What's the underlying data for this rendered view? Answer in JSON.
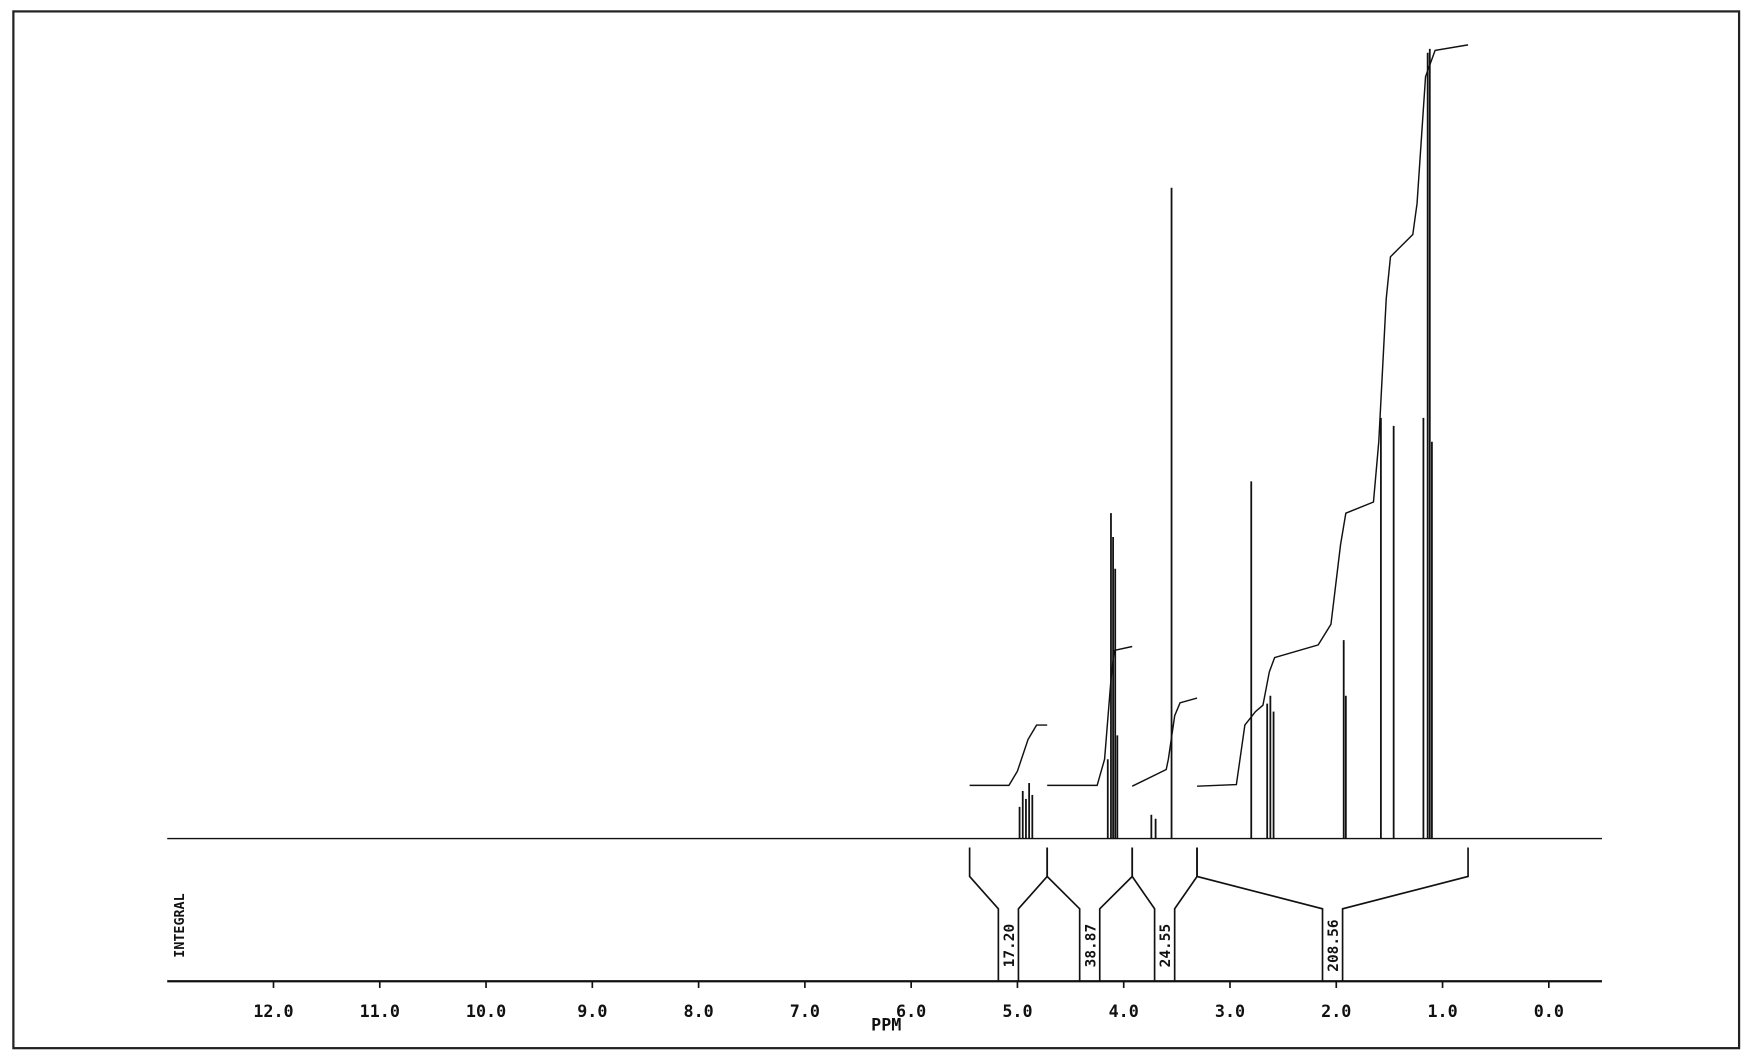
{
  "chart_data": {
    "type": "spectrum",
    "xlabel": "PPM",
    "integral_title": "INTEGRAL",
    "xlim": [
      13.0,
      -0.5
    ],
    "ylim": [
      0,
      100
    ],
    "xticks": [
      {
        "value": 12,
        "label": "12.0"
      },
      {
        "value": 11,
        "label": "11.0"
      },
      {
        "value": 10,
        "label": "10.0"
      },
      {
        "value": 9,
        "label": "9.0"
      },
      {
        "value": 8,
        "label": "8.0"
      },
      {
        "value": 7,
        "label": "7.0"
      },
      {
        "value": 6,
        "label": "6.0"
      },
      {
        "value": 5,
        "label": "5.0"
      },
      {
        "value": 4,
        "label": "4.0"
      },
      {
        "value": 3,
        "label": "3.0"
      },
      {
        "value": 2,
        "label": "2.0"
      },
      {
        "value": 1,
        "label": "1.0"
      },
      {
        "value": 0,
        "label": "0.0"
      }
    ],
    "color": "#111111",
    "peaks": {
      "ppm": [
        4.98,
        4.95,
        4.92,
        4.89,
        4.86,
        4.15,
        4.12,
        4.1,
        4.08,
        4.06,
        3.74,
        3.7,
        3.55,
        2.8,
        2.65,
        2.62,
        2.59,
        1.93,
        1.91,
        1.58,
        1.46,
        1.18,
        1.14,
        1.12,
        1.1
      ],
      "heights": [
        4,
        6,
        5,
        7,
        5.5,
        10,
        41,
        38,
        34,
        13,
        3,
        2.5,
        82,
        45,
        17,
        18,
        16,
        25,
        18,
        53,
        52,
        53,
        99,
        99.5,
        50
      ]
    },
    "integral_curves": [
      {
        "x": [
          5.45,
          5.08,
          5.0,
          4.9,
          4.82,
          4.72
        ],
        "y": [
          6.7,
          6.7,
          8.5,
          12.5,
          14.3,
          14.3
        ]
      },
      {
        "x": [
          4.72,
          4.25,
          4.18,
          4.12,
          4.09,
          3.92
        ],
        "y": [
          6.7,
          6.7,
          10,
          20,
          23.7,
          24.2
        ]
      },
      {
        "x": [
          3.92,
          3.6,
          3.58,
          3.52,
          3.47,
          3.31
        ],
        "y": [
          6.6,
          8.7,
          10,
          15.5,
          17.1,
          17.7
        ]
      },
      {
        "x": [
          3.31,
          2.94,
          2.86,
          2.76,
          2.69,
          2.63,
          2.58,
          2.17,
          2.05,
          1.96,
          1.91,
          1.65,
          1.6,
          1.53,
          1.49,
          1.28,
          1.24,
          1.16,
          1.07,
          0.76
        ],
        "y": [
          6.6,
          6.8,
          14.3,
          16.0,
          16.8,
          21,
          22.8,
          24.4,
          27,
          37,
          41,
          42.4,
          50,
          68,
          73.3,
          76.1,
          80,
          96,
          99.3,
          100
        ]
      }
    ],
    "integrals": {
      "ranges": [
        [
          5.45,
          4.72
        ],
        [
          4.72,
          3.92
        ],
        [
          3.92,
          3.31
        ],
        [
          3.31,
          0.76
        ]
      ],
      "values": [
        17.2,
        38.87,
        24.55,
        208.56
      ],
      "value_labels": [
        "17.20",
        "38.87",
        "24.55",
        "208.56"
      ]
    }
  }
}
